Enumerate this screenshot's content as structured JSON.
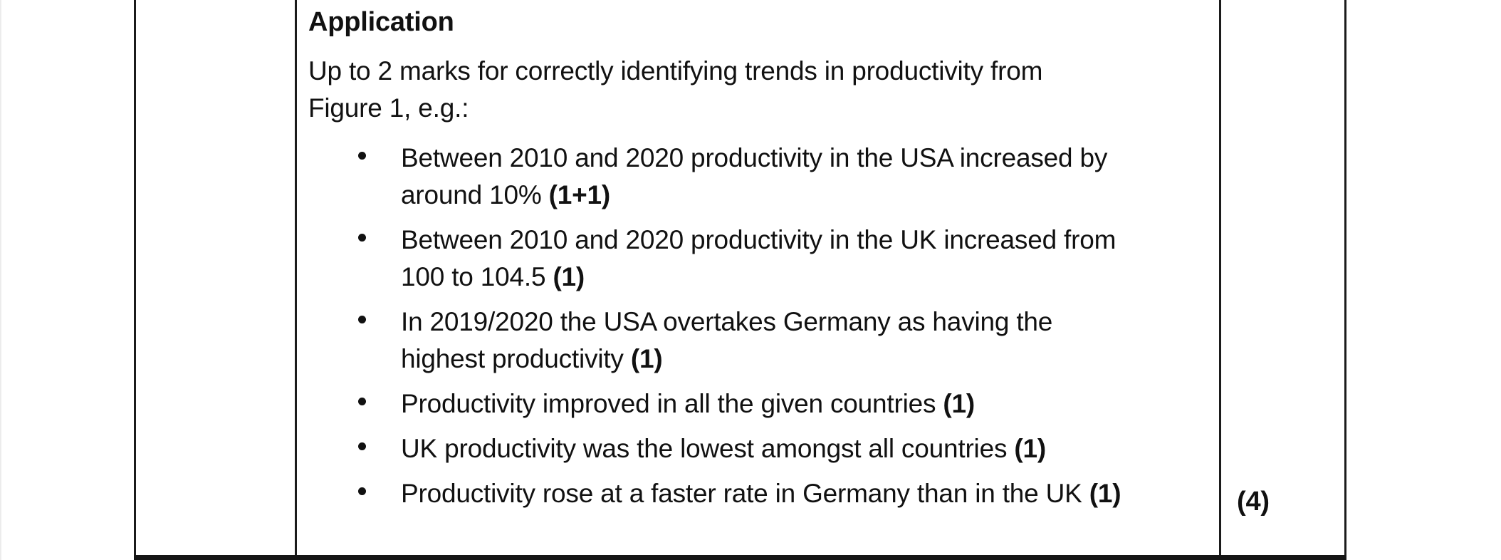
{
  "document": {
    "section_heading": "Application",
    "intro_lines": [
      "Up to 2 marks for correctly identifying trends in productivity from",
      "Figure 1, e.g.:"
    ],
    "bullets": [
      {
        "lines": [
          "Between 2010 and 2020 productivity in the USA increased by",
          "around 10%"
        ],
        "mark": "(1+1)"
      },
      {
        "lines": [
          "Between 2010 and 2020 productivity in the UK increased from",
          "100 to 104.5"
        ],
        "mark": "(1)"
      },
      {
        "lines": [
          "In 2019/2020 the USA overtakes Germany as having the",
          "highest productivity"
        ],
        "mark": "(1)"
      },
      {
        "lines": [
          "Productivity improved in all the given countries"
        ],
        "mark": "(1)"
      },
      {
        "lines": [
          "UK productivity was the lowest amongst all countries"
        ],
        "mark": "(1)"
      },
      {
        "lines": [
          "Productivity rose at a faster rate in Germany than in the UK"
        ],
        "mark": "(1)"
      }
    ],
    "total_marks": "(4)"
  },
  "colors": {
    "background": "#ffffff",
    "text": "#111111",
    "border": "#1b1b1b"
  }
}
